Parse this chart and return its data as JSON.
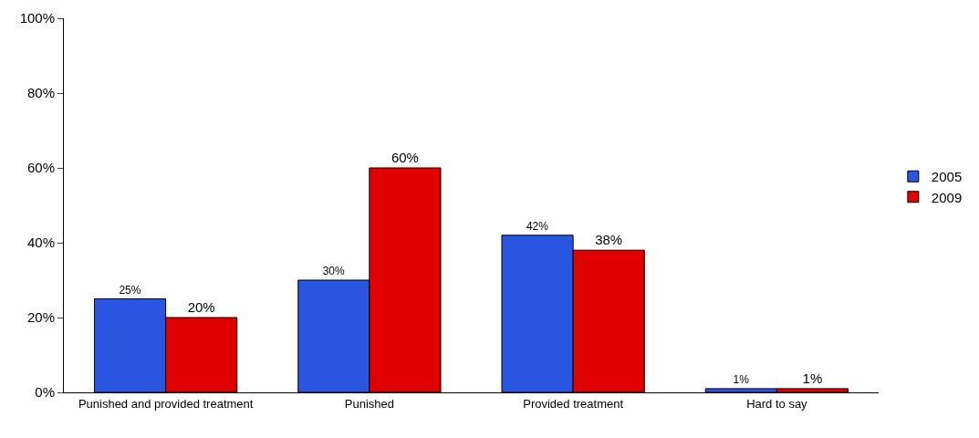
{
  "chart_data": {
    "type": "bar",
    "categories": [
      "Punished and provided treatment",
      "Punished",
      "Provided treatment",
      "Hard to say"
    ],
    "series": [
      {
        "name": "2005",
        "color": "#2a55e0",
        "values": [
          25,
          30,
          42,
          1
        ],
        "value_labels": [
          "25%",
          "30%",
          "42%",
          "1%"
        ]
      },
      {
        "name": "2009",
        "color": "#e00000",
        "values": [
          20,
          60,
          38,
          1
        ],
        "value_labels": [
          "20%",
          "60%",
          "38%",
          "1%"
        ]
      }
    ],
    "ylim": [
      0,
      100
    ],
    "yticks": [
      {
        "value": 0,
        "label": "0%"
      },
      {
        "value": 20,
        "label": "20%"
      },
      {
        "value": 40,
        "label": "40%"
      },
      {
        "value": 60,
        "label": "60%"
      },
      {
        "value": 80,
        "label": "80%"
      },
      {
        "value": 100,
        "label": "100%"
      }
    ],
    "legend": "right"
  }
}
